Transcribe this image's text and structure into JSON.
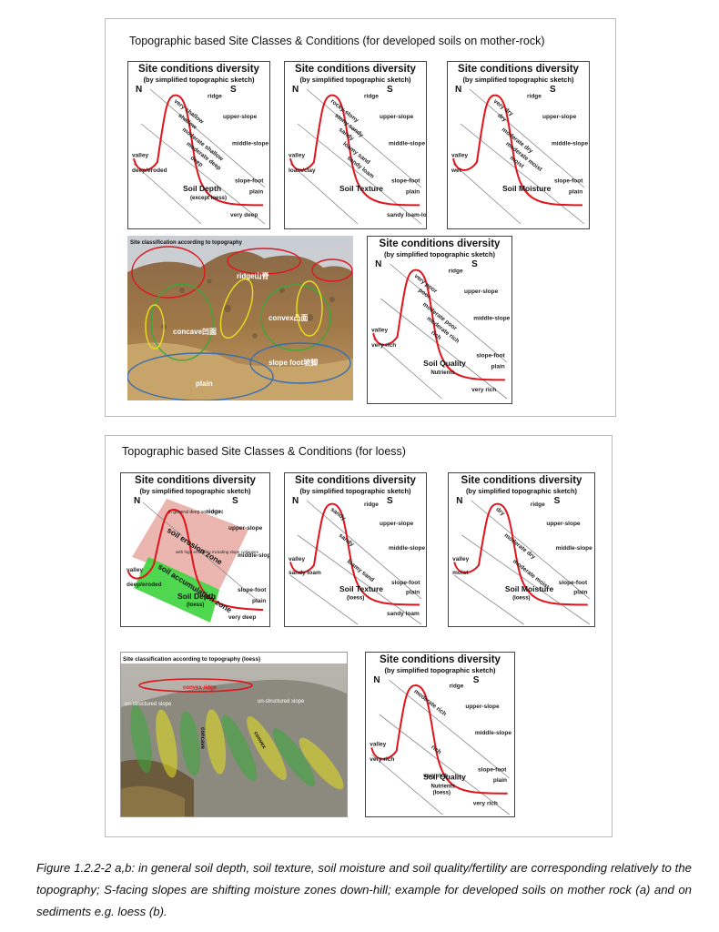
{
  "panel_a": {
    "title": "Topographic based Site Classes & Conditions (for developed soils on mother-rock)",
    "cards": [
      {
        "title": "Site conditions diversity",
        "subtitle": "(by simplified topographic sketch)",
        "north": "N",
        "south": "S",
        "positions": {
          "ridge": "ridge",
          "upper": "upper-slope",
          "middle": "middle-slope",
          "foot": "slope-foot",
          "plain": "plain",
          "valley": "valley"
        },
        "slope_labels": [
          "very shallow",
          "shallow",
          "moderate shallow",
          "moderate deep",
          "deep"
        ],
        "valley_value": "deep/eroded",
        "plain_value": "very deep",
        "caption": "Soil Depth",
        "caption_sub": "(except loess)"
      },
      {
        "title": "Site conditions diversity",
        "subtitle": "(by simplified topographic sketch)",
        "north": "N",
        "south": "S",
        "positions": {
          "ridge": "ridge",
          "upper": "upper-slope",
          "middle": "middle-slope",
          "foot": "slope-foot",
          "plain": "plain",
          "valley": "valley"
        },
        "slope_labels": [
          "rocky-stony",
          "stony sandy",
          "sandy",
          "loamy sand",
          "sandy loam"
        ],
        "valley_value": "loam/clay",
        "plain_value": "sandy loam-loam",
        "caption": "Soil Texture",
        "caption_sub": ""
      },
      {
        "title": "Site conditions diversity",
        "subtitle": "(by simplified topographic sketch)",
        "north": "N",
        "south": "S",
        "positions": {
          "ridge": "ridge",
          "upper": "upper-slope",
          "middle": "middle-slope",
          "foot": "slope-foot",
          "plain": "plain",
          "valley": "valley"
        },
        "slope_labels": [
          "very dry",
          "dry",
          "moderate dry",
          "moderate moist",
          "moist"
        ],
        "valley_value": "wet",
        "plain_value": "",
        "caption": "Soil Moisture",
        "caption_sub": ""
      },
      {
        "title": "Site conditions diversity",
        "subtitle": "(by simplified topographic sketch)",
        "north": "N",
        "south": "S",
        "positions": {
          "ridge": "ridge",
          "upper": "upper-slope",
          "middle": "middle-slope",
          "foot": "slope-foot",
          "plain": "plain",
          "valley": "valley"
        },
        "slope_labels": [
          "very poor",
          "poor",
          "moderate poor",
          "moderate rich",
          "rich"
        ],
        "valley_value": "very rich",
        "plain_value": "very rich",
        "caption": "Soil Quality",
        "caption_sub": "Nutrients"
      }
    ],
    "photo": {
      "title": "Site classification according to topography",
      "labels": {
        "ridge": "ridge山脊",
        "concave": "concave凹面",
        "convex": "convex凸面",
        "slopefoot": "slope foot坡脚",
        "plain": "plain"
      }
    }
  },
  "panel_b": {
    "title": "Topographic based Site Classes & Conditions (for loess)",
    "cards": [
      {
        "title": "Site conditions diversity",
        "subtitle": "(by simplified topographic sketch)",
        "north": "N",
        "south": "S",
        "positions": {
          "ridge": "ridge",
          "upper": "upper-slope",
          "middle": "middle-slope",
          "foot": "slope-foot",
          "plain": "plain",
          "valley": "valley"
        },
        "valley_value": "deep/eroded",
        "plain_value": "very deep",
        "erosion_note": "in general deep soils (>1m)",
        "erosion_zone": "soil erosion zone",
        "accum_note": "with high erodibility including slope collapses",
        "accum_zone": "soil accumulation zone",
        "caption": "Soil Depth",
        "caption_sub": "(loess)"
      },
      {
        "title": "Site conditions diversity",
        "subtitle": "(by simplified topographic sketch)",
        "north": "N",
        "south": "S",
        "positions": {
          "ridge": "ridge",
          "upper": "upper-slope",
          "middle": "middle-slope",
          "foot": "slope-foot",
          "plain": "plain",
          "valley": "valley"
        },
        "slope_labels": [
          "sandy",
          "sandy",
          "loamy sand"
        ],
        "valley_value": "sandy loam",
        "plain_value": "sandy loam",
        "caption": "Soil Texture",
        "caption_sub": "(loess)"
      },
      {
        "title": "Site conditions diversity",
        "subtitle": "(by simplified topographic sketch)",
        "north": "N",
        "south": "S",
        "positions": {
          "ridge": "ridge",
          "upper": "upper-slope",
          "middle": "middle-slope",
          "foot": "slope-foot",
          "plain": "plain",
          "valley": "valley"
        },
        "slope_labels": [
          "dry",
          "moderate dry",
          "moderate moist"
        ],
        "valley_value": "moist",
        "plain_value": "",
        "caption": "Soil Moisture",
        "caption_sub": "(loess)"
      },
      {
        "title": "Site conditions diversity",
        "subtitle": "(by simplified topographic sketch)",
        "north": "N",
        "south": "S",
        "positions": {
          "ridge": "ridge",
          "upper": "upper-slope",
          "middle": "middle-slope",
          "foot": "slope-foot",
          "plain": "plain",
          "valley": "valley"
        },
        "slope_labels": [
          "moderate rich",
          "rich"
        ],
        "valley_value": "very rich",
        "mid_value": "very rich",
        "plain_value": "very rich",
        "caption": "Soil Quality",
        "caption_sub": "Nutrients",
        "caption_sub2": "(loess)"
      }
    ],
    "photo": {
      "title": "Site classification according to topography  (loess)",
      "labels": {
        "ridge": "convex ridge",
        "unstruct1": "un-structured slope",
        "unstruct2": "un-structured slope",
        "concave": "concave",
        "convex": "convex"
      }
    }
  },
  "caption": {
    "fig_no": "Figure 1.2.2-2 a,b:",
    "text": " in general soil depth, soil texture, soil moisture and soil quality/fertility are corresponding relatively to the topography; S-facing slopes are shifting moisture zones down-hill; example for developed soils on mother rock (a) and on sediments e.g. loess (b)."
  },
  "colors": {
    "curve": "#e0141c",
    "green": "#3cd43c",
    "erosion": "#e8a9a1",
    "ellipse_red": "#e0141c",
    "ellipse_green": "#3aa83a",
    "ellipse_yellow": "#e6e01c",
    "ellipse_blue": "#3a6fb0"
  }
}
